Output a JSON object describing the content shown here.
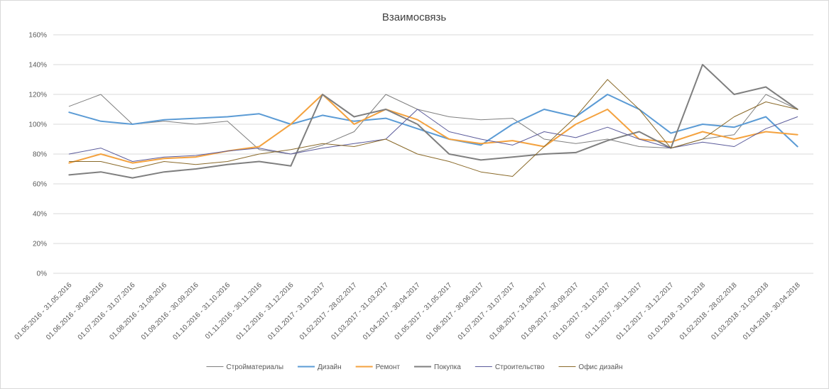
{
  "chart_data": {
    "type": "line",
    "title": "Взаимосвязь",
    "xlabel": "",
    "ylabel": "",
    "ylim": [
      0,
      160
    ],
    "y_ticks": [
      "0%",
      "20%",
      "40%",
      "60%",
      "80%",
      "100%",
      "120%",
      "140%",
      "160%"
    ],
    "grid": "horizontal",
    "legend_position": "bottom",
    "categories": [
      "01.05.2016 - 31.05.2016",
      "01.06.2016 - 30.06.2016",
      "01.07.2016 - 31.07.2016",
      "01.08.2016 - 31.08.2016",
      "01.09.2016 - 30.09.2016",
      "01.10.2016 - 31.10.2016",
      "01.11.2016 - 30.11.2016",
      "01.12.2016 - 31.12.2016",
      "01.01.2017 - 31.01.2017",
      "01.02.2017 - 28.02.2017",
      "01.03.2017 - 31.03.2017",
      "01.04.2017 - 30.04.2017",
      "01.05.2017 - 31.05.2017",
      "01.06.2017 - 30.06.2017",
      "01.07.2017 - 31.07.2017",
      "01.08.2017 - 31.08.2017",
      "01.09.2017 - 30.09.2017",
      "01.10.2017 - 31.10.2017",
      "01.11.2017 - 30.11.2017",
      "01.12.2017 - 31.12.2017",
      "01.01.2018 - 31.01.2018",
      "01.02.2018 - 28.02.2018",
      "01.03.2018 - 31.03.2018",
      "01.04.2018 - 30.04.2018"
    ],
    "series": [
      {
        "name": "Стройматериалы",
        "color": "#7f7f7f",
        "width": 1,
        "values": [
          112,
          120,
          100,
          102,
          100,
          102,
          83,
          80,
          86,
          95,
          120,
          110,
          105,
          103,
          104,
          90,
          87,
          90,
          85,
          84,
          90,
          93,
          120,
          110
        ]
      },
      {
        "name": "Дизайн",
        "color": "#5b9bd5",
        "width": 2,
        "values": [
          108,
          102,
          100,
          103,
          104,
          105,
          107,
          100,
          106,
          102,
          104,
          97,
          90,
          86,
          100,
          110,
          105,
          120,
          110,
          94,
          100,
          98,
          105,
          85
        ]
      },
      {
        "name": "Ремонт",
        "color": "#f4a23f",
        "width": 2,
        "values": [
          74,
          80,
          74,
          77,
          78,
          82,
          85,
          100,
          120,
          100,
          110,
          103,
          90,
          87,
          89,
          85,
          100,
          110,
          90,
          88,
          95,
          90,
          95,
          93
        ]
      },
      {
        "name": "Покупка",
        "color": "#7f7f7f",
        "width": 2,
        "values": [
          66,
          68,
          64,
          68,
          70,
          73,
          75,
          72,
          120,
          105,
          110,
          100,
          80,
          76,
          78,
          80,
          81,
          89,
          95,
          84,
          140,
          120,
          125,
          110
        ]
      },
      {
        "name": "Строительство",
        "color": "#5a5a9a",
        "width": 1,
        "values": [
          80,
          84,
          75,
          78,
          79,
          82,
          84,
          80,
          84,
          87,
          90,
          110,
          95,
          90,
          86,
          95,
          91,
          98,
          90,
          84,
          88,
          85,
          97,
          105
        ]
      },
      {
        "name": "Офис дизайн",
        "color": "#8a6a2a",
        "width": 1,
        "values": [
          75,
          75,
          70,
          75,
          73,
          75,
          80,
          83,
          87,
          85,
          90,
          80,
          75,
          68,
          65,
          85,
          105,
          130,
          110,
          84,
          90,
          105,
          115,
          110
        ]
      }
    ]
  }
}
